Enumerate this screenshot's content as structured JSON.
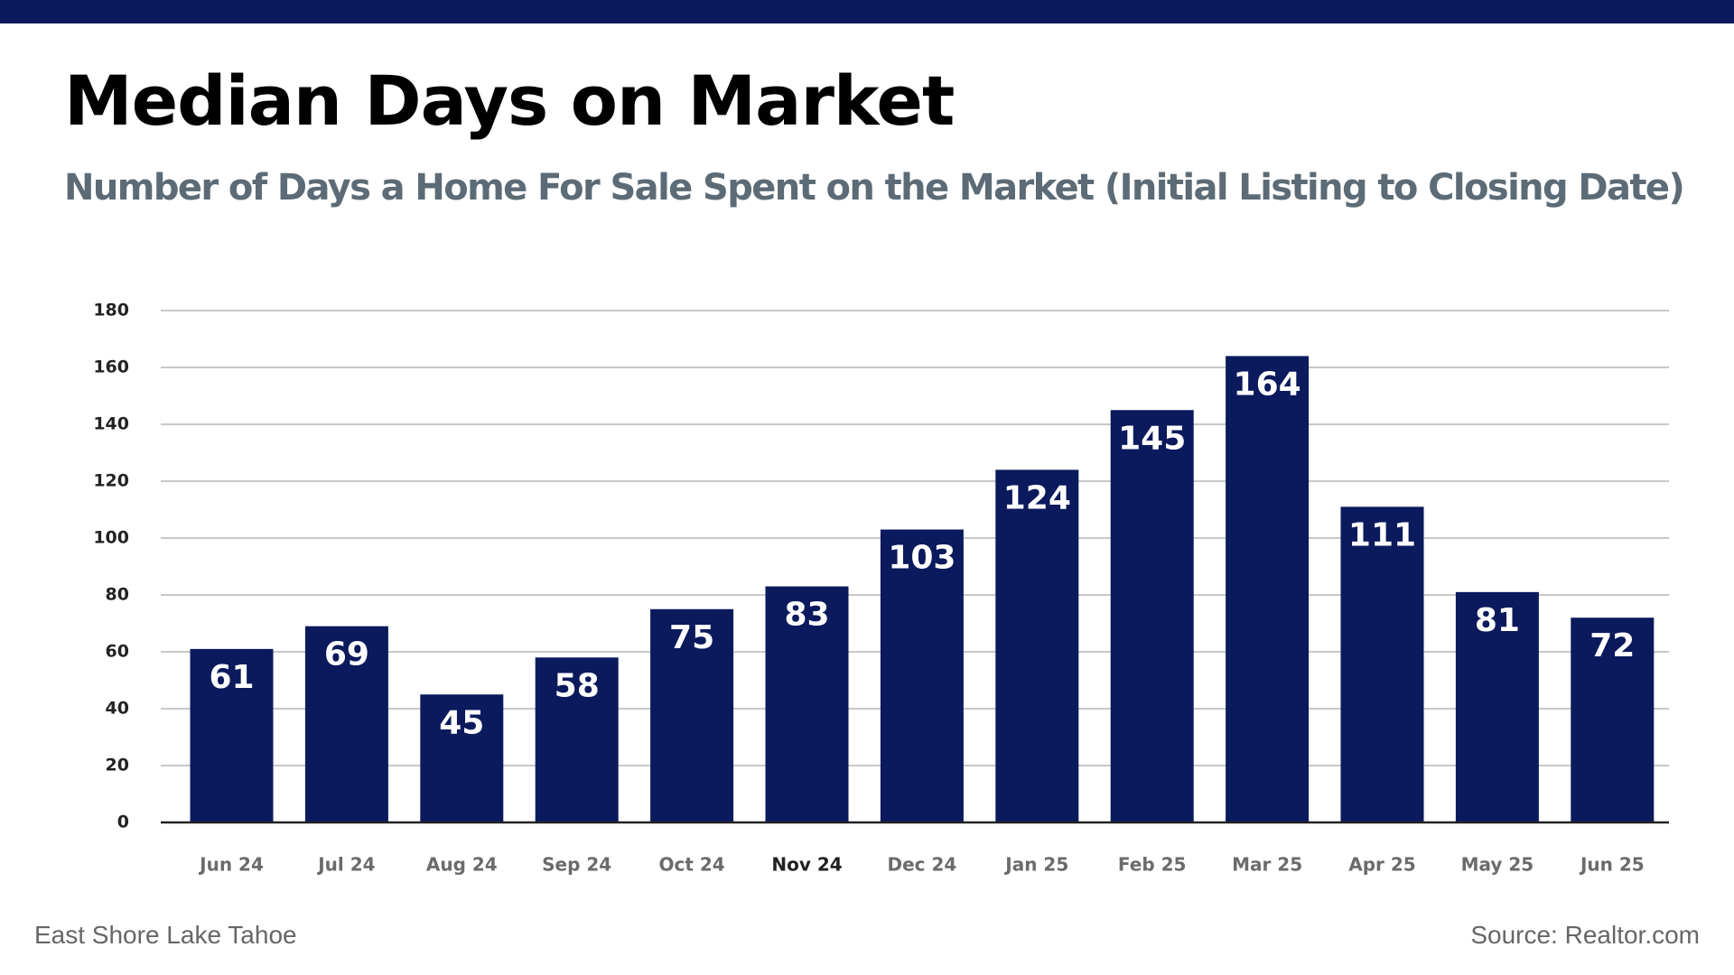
{
  "header": {
    "title": "Median Days on Market",
    "subtitle": "Number of Days a Home For Sale Spent on the Market (Initial Listing to Closing Date)"
  },
  "footer": {
    "left_text": "East Shore Lake Tahoe",
    "right_text": "Source: Realtor.com"
  },
  "colors": {
    "bar": "#0a1a5c",
    "top_bar": "#0a1a5c",
    "subtitle": "#5c6b75",
    "gridline": "#b5b5b5",
    "axis": "#222222",
    "tick_label": "#555555",
    "data_label": "#ffffff"
  },
  "chart_data": {
    "type": "bar",
    "title": "Median Days on Market",
    "subtitle": "Number of Days a Home For Sale Spent on the Market (Initial Listing to Closing Date)",
    "xlabel": "",
    "ylabel": "",
    "categories": [
      "Jun 24",
      "Jul 24",
      "Aug 24",
      "Sep 24",
      "Oct 24",
      "Nov 24",
      "Dec 24",
      "Jan 25",
      "Feb 25",
      "Mar 25",
      "Apr 25",
      "May 25",
      "Jun 25"
    ],
    "values": [
      61,
      69,
      45,
      58,
      75,
      83,
      103,
      124,
      145,
      164,
      111,
      81,
      72
    ],
    "ylim": [
      0,
      180
    ],
    "yticks": [
      0,
      20,
      40,
      60,
      80,
      100,
      120,
      140,
      160,
      180
    ],
    "grid": true,
    "legend": "none",
    "data_labels": true,
    "highlighted_category": "Nov 24"
  }
}
